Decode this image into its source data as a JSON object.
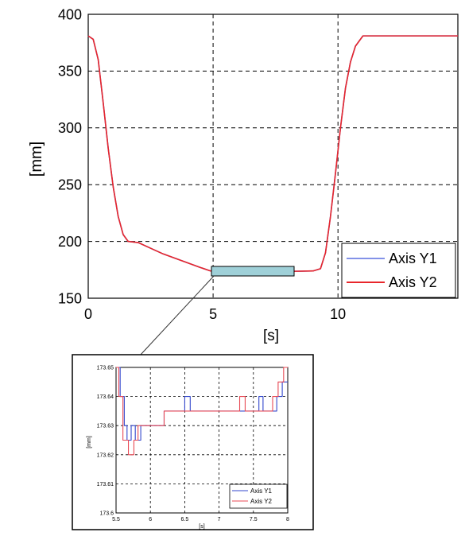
{
  "chart_data": [
    {
      "type": "line",
      "xlabel": "[s]",
      "ylabel": "[mm]",
      "xlim": [
        0,
        14.8
      ],
      "ylim": [
        150,
        400
      ],
      "xticks": [
        0,
        5,
        10
      ],
      "yticks": [
        150,
        200,
        250,
        300,
        350,
        400
      ],
      "grid": true,
      "legend_position": "bottom-right",
      "series": [
        {
          "name": "Axis Y1",
          "color": "#5a6ee0",
          "x": [
            0,
            0.2,
            0.4,
            0.6,
            0.8,
            1.0,
            1.2,
            1.4,
            1.6,
            2.0,
            2.5,
            3.0,
            3.5,
            4.0,
            4.5,
            4.9,
            5.5,
            6.0,
            7.0,
            8.0,
            9.0,
            9.3,
            9.5,
            9.7,
            9.9,
            10.1,
            10.3,
            10.5,
            10.7,
            11.0,
            12.0,
            13.0,
            14.8
          ],
          "y": [
            381,
            378,
            360,
            322,
            282,
            248,
            222,
            206,
            200,
            199,
            194,
            189,
            185,
            181,
            177,
            174,
            173.63,
            173.63,
            173.635,
            173.64,
            174,
            176,
            190,
            222,
            260,
            300,
            335,
            358,
            372,
            381,
            381,
            381,
            381
          ]
        },
        {
          "name": "Axis Y2",
          "color": "#e8262b",
          "x": [
            0,
            0.2,
            0.4,
            0.6,
            0.8,
            1.0,
            1.2,
            1.4,
            1.6,
            2.0,
            2.5,
            3.0,
            3.5,
            4.0,
            4.5,
            4.9,
            5.5,
            6.0,
            7.0,
            8.0,
            9.0,
            9.3,
            9.5,
            9.7,
            9.9,
            10.1,
            10.3,
            10.5,
            10.7,
            11.0,
            12.0,
            13.0,
            14.8
          ],
          "y": [
            381,
            378,
            360,
            322,
            282,
            248,
            222,
            206,
            200,
            199,
            194,
            189,
            185,
            181,
            177,
            174,
            173.62,
            173.63,
            173.635,
            173.64,
            174,
            176,
            190,
            222,
            260,
            300,
            335,
            358,
            372,
            381,
            381,
            381,
            381
          ]
        }
      ]
    },
    {
      "type": "line",
      "xlabel": "[s]",
      "ylabel": "[mm]",
      "xlim": [
        5.5,
        8
      ],
      "ylim": [
        173.6,
        173.65
      ],
      "xticks": [
        5.5,
        6,
        6.5,
        7,
        7.5,
        8
      ],
      "xtick_labels": [
        "5.5",
        "6",
        "6.5",
        "7",
        "7.5",
        "8"
      ],
      "yticks": [
        173.6,
        173.61,
        173.62,
        173.63,
        173.64,
        173.65
      ],
      "ytick_labels": [
        "173.6",
        "173.61",
        "173.62",
        "173.63",
        "173.64",
        "173.65"
      ],
      "grid": true,
      "legend_position": "bottom-right",
      "series": [
        {
          "name": "Axis Y1",
          "color": "#3347cc",
          "x": [
            5.5,
            5.56,
            5.56,
            5.62,
            5.62,
            5.66,
            5.66,
            5.72,
            5.72,
            5.78,
            5.78,
            5.86,
            5.86,
            5.94,
            5.94,
            6.2,
            6.2,
            6.5,
            6.5,
            6.58,
            6.58,
            7.58,
            7.58,
            7.64,
            7.64,
            7.84,
            7.84,
            7.92,
            7.92,
            8.0
          ],
          "y": [
            173.65,
            173.65,
            173.64,
            173.64,
            173.63,
            173.63,
            173.625,
            173.625,
            173.63,
            173.63,
            173.625,
            173.625,
            173.63,
            173.63,
            173.63,
            173.63,
            173.635,
            173.635,
            173.64,
            173.64,
            173.635,
            173.635,
            173.64,
            173.64,
            173.635,
            173.635,
            173.64,
            173.64,
            173.645,
            173.645
          ]
        },
        {
          "name": "Axis Y2",
          "color": "#e84a55",
          "x": [
            5.5,
            5.54,
            5.54,
            5.6,
            5.6,
            5.68,
            5.68,
            5.76,
            5.76,
            5.82,
            5.82,
            5.9,
            5.9,
            6.2,
            6.2,
            7.3,
            7.3,
            7.38,
            7.38,
            7.78,
            7.78,
            7.86,
            7.86,
            7.94,
            7.94,
            8.0
          ],
          "y": [
            173.65,
            173.65,
            173.64,
            173.64,
            173.625,
            173.625,
            173.62,
            173.62,
            173.625,
            173.625,
            173.63,
            173.63,
            173.63,
            173.63,
            173.635,
            173.635,
            173.64,
            173.64,
            173.635,
            173.635,
            173.64,
            173.64,
            173.645,
            173.645,
            173.65,
            173.65
          ]
        }
      ]
    }
  ]
}
